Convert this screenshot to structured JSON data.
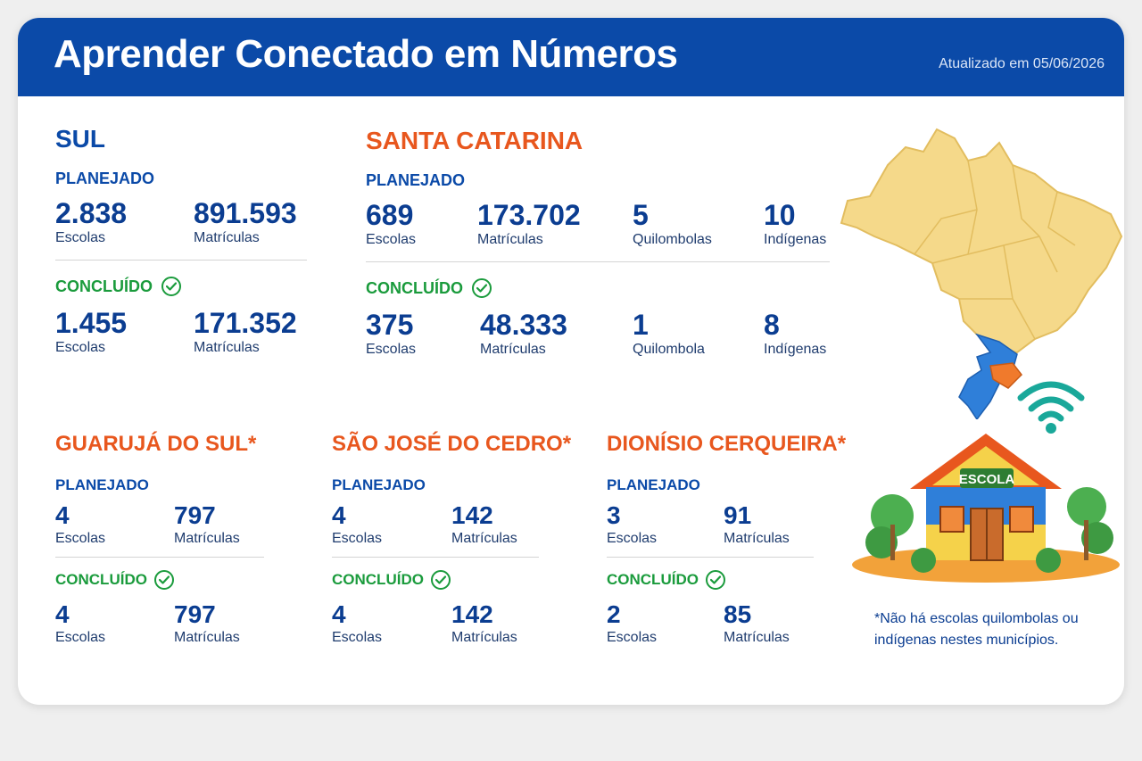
{
  "header": {
    "title": "Aprender Conectado em Números",
    "updated": "Atualizado em 05/06/2026"
  },
  "sul": {
    "name": "SUL",
    "planejado_label": "PLANEJADO",
    "planejado": [
      {
        "value": "2.838",
        "label": "Escolas"
      },
      {
        "value": "891.593",
        "label": "Matrículas"
      }
    ],
    "concluido_label": "CONCLUÍDO",
    "concluido": [
      {
        "value": "1.455",
        "label": "Escolas"
      },
      {
        "value": "171.352",
        "label": "Matrículas"
      }
    ]
  },
  "santa_catarina": {
    "name": "SANTA CATARINA",
    "planejado_label": "PLANEJADO",
    "planejado": [
      {
        "value": "689",
        "label": "Escolas"
      },
      {
        "value": "173.702",
        "label": "Matrículas"
      },
      {
        "value": "5",
        "label": "Quilombolas"
      },
      {
        "value": "10",
        "label": "Indígenas"
      }
    ],
    "concluido_label": "CONCLUÍDO",
    "concluido": [
      {
        "value": "375",
        "label": "Escolas"
      },
      {
        "value": "48.333",
        "label": "Matrículas"
      },
      {
        "value": "1",
        "label": "Quilombola"
      },
      {
        "value": "8",
        "label": "Indígenas"
      }
    ]
  },
  "municipios": [
    {
      "name": "GUARUJÁ DO SUL*",
      "planejado_label": "PLANEJADO",
      "planejado": [
        {
          "value": "4",
          "label": "Escolas"
        },
        {
          "value": "797",
          "label": "Matrículas"
        }
      ],
      "concluido_label": "CONCLUÍDO",
      "concluido": [
        {
          "value": "4",
          "label": "Escolas"
        },
        {
          "value": "797",
          "label": "Matrículas"
        }
      ]
    },
    {
      "name": "SÃO JOSÉ DO CEDRO*",
      "planejado_label": "PLANEJADO",
      "planejado": [
        {
          "value": "4",
          "label": "Escolas"
        },
        {
          "value": "142",
          "label": "Matrículas"
        }
      ],
      "concluido_label": "CONCLUÍDO",
      "concluido": [
        {
          "value": "4",
          "label": "Escolas"
        },
        {
          "value": "142",
          "label": "Matrículas"
        }
      ]
    },
    {
      "name": "DIONÍSIO CERQUEIRA*",
      "planejado_label": "PLANEJADO",
      "planejado": [
        {
          "value": "3",
          "label": "Escolas"
        },
        {
          "value": "91",
          "label": "Matrículas"
        }
      ],
      "concluido_label": "CONCLUÍDO",
      "concluido": [
        {
          "value": "2",
          "label": "Escolas"
        },
        {
          "value": "85",
          "label": "Matrículas"
        }
      ]
    }
  ],
  "illustration": {
    "school_sign": "ESCOLA",
    "map_colors": {
      "brazil": "#f5d98a",
      "south": "#2f7fd9",
      "santa_catarina": "#f07a2c"
    },
    "wifi_color": "#1aa89a"
  },
  "footnote": "*Não há escolas quilombolas ou indígenas nestes municípios."
}
